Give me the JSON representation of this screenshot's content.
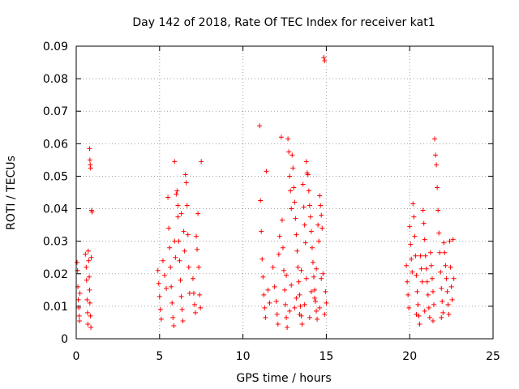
{
  "chart_data": {
    "type": "scatter",
    "title": "Day 142 of 2018, Rate Of TEC Index for receiver kat1",
    "xlabel": "GPS time / hours",
    "ylabel": "ROTI / TECUs",
    "xlim": [
      0,
      25
    ],
    "ylim": [
      0,
      0.09
    ],
    "x_ticks": [
      0,
      5,
      10,
      15,
      20,
      25
    ],
    "y_ticks": [
      0,
      0.01,
      0.02,
      0.03,
      0.04,
      0.05,
      0.06,
      0.07,
      0.08,
      0.09
    ],
    "x_tick_labels": [
      "0",
      "5",
      "10",
      "15",
      "20",
      "25"
    ],
    "y_tick_labels": [
      "0",
      "0.01",
      "0.02",
      "0.03",
      "0.04",
      "0.05",
      "0.06",
      "0.07",
      "0.08",
      "0.09"
    ],
    "grid": true,
    "marker": "+",
    "color": "#ff0000",
    "series": [
      {
        "name": "ROTI",
        "points": [
          [
            0.05,
            0.0235
          ],
          [
            0.08,
            0.021
          ],
          [
            0.1,
            0.016
          ],
          [
            0.12,
            0.012
          ],
          [
            0.15,
            0.0095
          ],
          [
            0.18,
            0.007
          ],
          [
            0.2,
            0.0055
          ],
          [
            0.22,
            0.014
          ],
          [
            0.55,
            0.026
          ],
          [
            0.6,
            0.022
          ],
          [
            0.62,
            0.018
          ],
          [
            0.65,
            0.012
          ],
          [
            0.68,
            0.008
          ],
          [
            0.7,
            0.0045
          ],
          [
            0.72,
            0.027
          ],
          [
            0.75,
            0.024
          ],
          [
            0.78,
            0.019
          ],
          [
            0.8,
            0.015
          ],
          [
            0.82,
            0.011
          ],
          [
            0.85,
            0.007
          ],
          [
            0.88,
            0.0035
          ],
          [
            0.9,
            0.025
          ],
          [
            0.92,
            0.0395
          ],
          [
            0.95,
            0.039
          ],
          [
            0.8,
            0.0585
          ],
          [
            0.82,
            0.055
          ],
          [
            0.84,
            0.0535
          ],
          [
            0.86,
            0.0525
          ],
          [
            4.9,
            0.021
          ],
          [
            4.95,
            0.017
          ],
          [
            5.0,
            0.013
          ],
          [
            5.05,
            0.009
          ],
          [
            5.1,
            0.006
          ],
          [
            5.2,
            0.024
          ],
          [
            5.3,
            0.0195
          ],
          [
            5.4,
            0.0155
          ],
          [
            5.5,
            0.0435
          ],
          [
            5.55,
            0.034
          ],
          [
            5.6,
            0.028
          ],
          [
            5.65,
            0.022
          ],
          [
            5.7,
            0.016
          ],
          [
            5.75,
            0.011
          ],
          [
            5.8,
            0.0065
          ],
          [
            5.85,
            0.004
          ],
          [
            5.9,
            0.03
          ],
          [
            5.95,
            0.025
          ],
          [
            6.0,
            0.0445
          ],
          [
            6.05,
            0.0455
          ],
          [
            6.1,
            0.0375
          ],
          [
            6.15,
            0.03
          ],
          [
            6.2,
            0.024
          ],
          [
            6.25,
            0.018
          ],
          [
            6.3,
            0.013
          ],
          [
            6.35,
            0.009
          ],
          [
            6.4,
            0.0055
          ],
          [
            6.45,
            0.033
          ],
          [
            6.5,
            0.027
          ],
          [
            6.55,
            0.0505
          ],
          [
            6.6,
            0.048
          ],
          [
            6.65,
            0.041
          ],
          [
            6.7,
            0.032
          ],
          [
            6.75,
            0.022
          ],
          [
            6.8,
            0.014
          ],
          [
            5.9,
            0.0545
          ],
          [
            6.1,
            0.041
          ],
          [
            6.3,
            0.0385
          ],
          [
            7.0,
            0.0185
          ],
          [
            7.05,
            0.014
          ],
          [
            7.1,
            0.0105
          ],
          [
            7.15,
            0.008
          ],
          [
            7.2,
            0.0315
          ],
          [
            7.25,
            0.0275
          ],
          [
            7.3,
            0.0385
          ],
          [
            7.35,
            0.022
          ],
          [
            7.4,
            0.0135
          ],
          [
            7.45,
            0.0095
          ],
          [
            7.5,
            0.0545
          ],
          [
            11.0,
            0.0655
          ],
          [
            11.05,
            0.0425
          ],
          [
            11.1,
            0.033
          ],
          [
            11.15,
            0.0245
          ],
          [
            11.2,
            0.019
          ],
          [
            11.25,
            0.0135
          ],
          [
            11.3,
            0.0095
          ],
          [
            11.35,
            0.0065
          ],
          [
            11.4,
            0.0515
          ],
          [
            11.5,
            0.015
          ],
          [
            11.6,
            0.011
          ],
          [
            11.8,
            0.022
          ],
          [
            11.9,
            0.016
          ],
          [
            12.0,
            0.0115
          ],
          [
            12.05,
            0.0075
          ],
          [
            12.1,
            0.0045
          ],
          [
            12.15,
            0.026
          ],
          [
            12.2,
            0.0315
          ],
          [
            12.3,
            0.062
          ],
          [
            12.35,
            0.0365
          ],
          [
            12.4,
            0.028
          ],
          [
            12.45,
            0.021
          ],
          [
            12.5,
            0.015
          ],
          [
            12.55,
            0.0105
          ],
          [
            12.6,
            0.0065
          ],
          [
            12.65,
            0.0035
          ],
          [
            12.7,
            0.0615
          ],
          [
            12.75,
            0.0575
          ],
          [
            12.8,
            0.05
          ],
          [
            12.85,
            0.0455
          ],
          [
            12.9,
            0.04
          ],
          [
            12.95,
            0.0565
          ],
          [
            13.0,
            0.0525
          ],
          [
            13.05,
            0.0465
          ],
          [
            13.1,
            0.042
          ],
          [
            13.15,
            0.037
          ],
          [
            13.2,
            0.032
          ],
          [
            13.25,
            0.027
          ],
          [
            13.3,
            0.022
          ],
          [
            13.35,
            0.0175
          ],
          [
            13.4,
            0.0135
          ],
          [
            13.45,
            0.01
          ],
          [
            13.5,
            0.007
          ],
          [
            13.55,
            0.0045
          ],
          [
            13.6,
            0.0475
          ],
          [
            13.65,
            0.0405
          ],
          [
            13.7,
            0.035
          ],
          [
            13.75,
            0.0295
          ],
          [
            13.8,
            0.0545
          ],
          [
            13.85,
            0.051
          ],
          [
            13.9,
            0.0505
          ],
          [
            13.95,
            0.0455
          ],
          [
            14.0,
            0.041
          ],
          [
            14.05,
            0.0375
          ],
          [
            14.1,
            0.033
          ],
          [
            14.15,
            0.028
          ],
          [
            14.2,
            0.0235
          ],
          [
            14.25,
            0.019
          ],
          [
            14.3,
            0.015
          ],
          [
            14.35,
            0.0115
          ],
          [
            14.4,
            0.0085
          ],
          [
            14.45,
            0.006
          ],
          [
            14.5,
            0.035
          ],
          [
            14.55,
            0.03
          ],
          [
            14.6,
            0.044
          ],
          [
            14.65,
            0.041
          ],
          [
            14.7,
            0.038
          ],
          [
            14.75,
            0.034
          ],
          [
            14.8,
            0.02
          ],
          [
            14.85,
            0.0865
          ],
          [
            14.9,
            0.0855
          ],
          [
            14.95,
            0.0145
          ],
          [
            15.0,
            0.011
          ],
          [
            12.6,
            0.0195
          ],
          [
            12.9,
            0.0165
          ],
          [
            13.2,
            0.0125
          ],
          [
            13.5,
            0.021
          ],
          [
            13.8,
            0.0185
          ],
          [
            14.1,
            0.0145
          ],
          [
            14.4,
            0.0215
          ],
          [
            14.7,
            0.0185
          ],
          [
            12.8,
            0.0085
          ],
          [
            13.1,
            0.0095
          ],
          [
            13.4,
            0.0075
          ],
          [
            13.7,
            0.0105
          ],
          [
            14.0,
            0.0065
          ],
          [
            14.3,
            0.0125
          ],
          [
            14.6,
            0.0095
          ],
          [
            14.9,
            0.0075
          ],
          [
            19.8,
            0.0225
          ],
          [
            19.85,
            0.0175
          ],
          [
            19.9,
            0.0135
          ],
          [
            19.95,
            0.0095
          ],
          [
            20.0,
            0.0345
          ],
          [
            20.05,
            0.029
          ],
          [
            20.1,
            0.0245
          ],
          [
            20.15,
            0.0205
          ],
          [
            20.2,
            0.0415
          ],
          [
            20.25,
            0.0375
          ],
          [
            20.3,
            0.0315
          ],
          [
            20.35,
            0.0255
          ],
          [
            20.4,
            0.0195
          ],
          [
            20.45,
            0.0145
          ],
          [
            20.5,
            0.0105
          ],
          [
            20.55,
            0.007
          ],
          [
            20.6,
            0.0045
          ],
          [
            20.65,
            0.0255
          ],
          [
            20.7,
            0.0215
          ],
          [
            20.75,
            0.0175
          ],
          [
            20.8,
            0.0395
          ],
          [
            20.85,
            0.0355
          ],
          [
            20.9,
            0.0305
          ],
          [
            20.95,
            0.0255
          ],
          [
            21.0,
            0.0215
          ],
          [
            21.05,
            0.0175
          ],
          [
            21.1,
            0.0135
          ],
          [
            21.15,
            0.0095
          ],
          [
            21.2,
            0.0065
          ],
          [
            21.25,
            0.0265
          ],
          [
            21.3,
            0.0225
          ],
          [
            21.35,
            0.0185
          ],
          [
            21.4,
            0.0145
          ],
          [
            21.45,
            0.0105
          ],
          [
            21.5,
            0.0615
          ],
          [
            21.55,
            0.0565
          ],
          [
            21.6,
            0.0535
          ],
          [
            21.65,
            0.0465
          ],
          [
            21.7,
            0.0395
          ],
          [
            21.75,
            0.0325
          ],
          [
            21.8,
            0.0265
          ],
          [
            21.85,
            0.0205
          ],
          [
            21.9,
            0.0155
          ],
          [
            21.95,
            0.0115
          ],
          [
            22.0,
            0.008
          ],
          [
            22.05,
            0.0295
          ],
          [
            22.1,
            0.0265
          ],
          [
            22.15,
            0.0225
          ],
          [
            22.2,
            0.0185
          ],
          [
            22.25,
            0.0145
          ],
          [
            22.3,
            0.0105
          ],
          [
            22.35,
            0.0075
          ],
          [
            22.4,
            0.03
          ],
          [
            22.45,
            0.022
          ],
          [
            22.5,
            0.016
          ],
          [
            22.55,
            0.012
          ],
          [
            22.6,
            0.0305
          ],
          [
            22.65,
            0.0185
          ],
          [
            20.4,
            0.0075
          ],
          [
            20.9,
            0.0085
          ],
          [
            21.4,
            0.0055
          ],
          [
            21.9,
            0.0065
          ]
        ]
      }
    ]
  }
}
